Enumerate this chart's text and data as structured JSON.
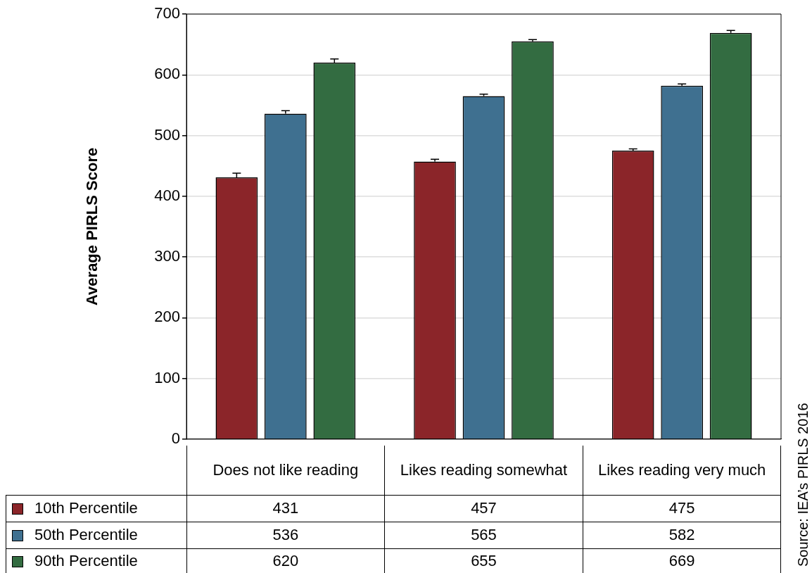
{
  "chart_data": {
    "type": "bar",
    "ylabel": "Average PIRLS Score",
    "categories": [
      "Does not like reading",
      "Likes reading somewhat",
      "Likes reading very much"
    ],
    "series": [
      {
        "name": "10th Percentile",
        "color": "#8b2529",
        "values": [
          431,
          457,
          475
        ],
        "errors": [
          [
            431,
            438
          ],
          [
            457,
            461
          ],
          [
            475,
            478
          ]
        ]
      },
      {
        "name": "50th Percentile",
        "color": "#3f7090",
        "values": [
          536,
          565,
          582
        ],
        "errors": [
          [
            536,
            541
          ],
          [
            565,
            568
          ],
          [
            582,
            585
          ]
        ]
      },
      {
        "name": "90th Percentile",
        "color": "#336c41",
        "values": [
          620,
          655,
          669
        ],
        "errors": [
          [
            620,
            626
          ],
          [
            655,
            658
          ],
          [
            669,
            673
          ]
        ]
      }
    ],
    "ylim": [
      0,
      700
    ],
    "yticks": [
      0,
      100,
      200,
      300,
      400,
      500,
      600,
      700
    ],
    "grid": "y",
    "legend": "bottom",
    "data_labels": true,
    "annotations": [
      "Source: IEA’s PIRLS 2016"
    ]
  }
}
